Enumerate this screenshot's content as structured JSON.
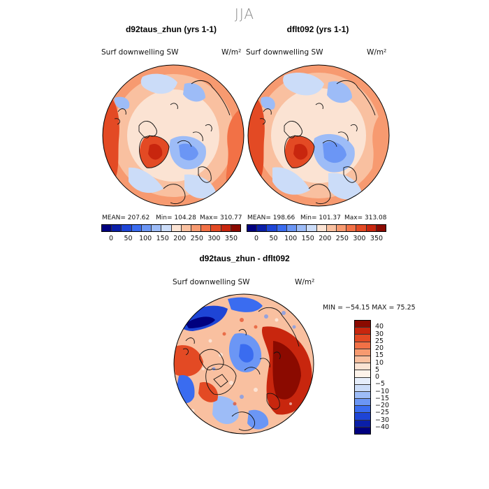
{
  "season_title": "JJA",
  "panel_left": {
    "title": "d92taus_zhun (yrs 1-1)",
    "variable": "Surf downwelling SW",
    "units": "W/m²",
    "mean_label": "MEAN= 207.62",
    "min_label": "Min= 104.28",
    "max_label": "Max= 310.77"
  },
  "panel_right": {
    "title": "dflt092 (yrs 1-1)",
    "variable": "Surf downwelling SW",
    "units": "W/m²",
    "mean_label": "MEAN= 198.66",
    "min_label": "Min= 101.37",
    "max_label": "Max= 313.08"
  },
  "abs_colorbar": {
    "ticks": [
      "0",
      "50",
      "100",
      "150",
      "200",
      "250",
      "300",
      "350"
    ],
    "colors": [
      "#00007f",
      "#0a1fa8",
      "#1e45d6",
      "#3a6cf0",
      "#6b96f5",
      "#9dbcf7",
      "#cbdcf8",
      "#fbe3d3",
      "#f9c0a0",
      "#f79a70",
      "#f27146",
      "#e34a24",
      "#c8260e",
      "#8b0a00"
    ]
  },
  "diff_panel": {
    "title": "d92taus_zhun - dflt092",
    "variable": "Surf downwelling SW",
    "units": "W/m²",
    "minmax_label": "MIN = −54.15 MAX =  75.25"
  },
  "diff_colorbar": {
    "ticks": [
      "40",
      "30",
      "25",
      "20",
      "15",
      "10",
      "5",
      "0",
      "−5",
      "−10",
      "−15",
      "−20",
      "−25",
      "−30",
      "−40"
    ],
    "colors": [
      "#8b0a00",
      "#c8260e",
      "#e34a24",
      "#f27146",
      "#f79a70",
      "#f9c0a0",
      "#fbe3d3",
      "#fdf3ea",
      "#e6eefb",
      "#cbdcf8",
      "#9dbcf7",
      "#6b96f5",
      "#3a6cf0",
      "#1e45d6",
      "#0a1fa8",
      "#00007f"
    ]
  }
}
